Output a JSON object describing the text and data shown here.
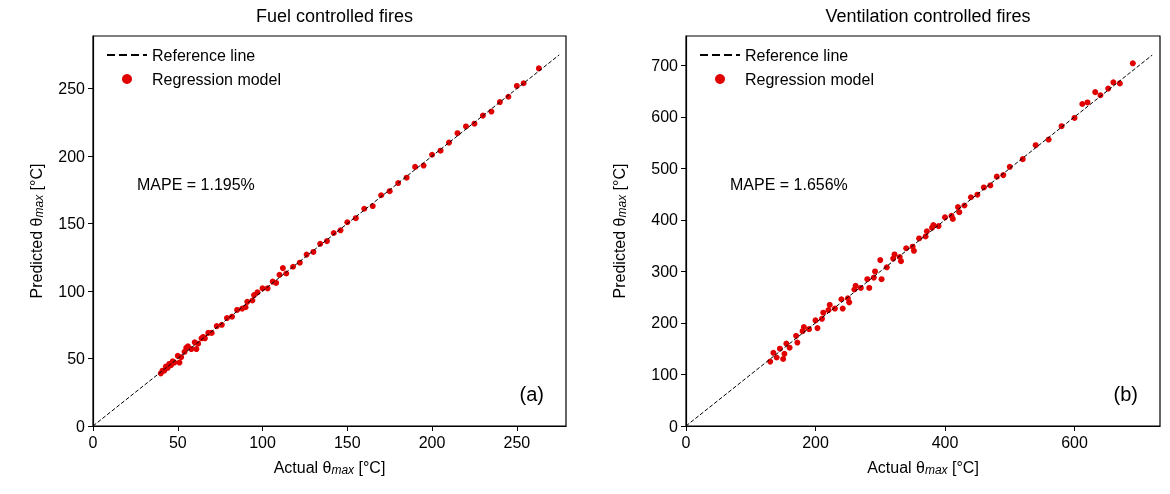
{
  "chart_data": [
    {
      "type": "scatter",
      "title": "Fuel controlled fires",
      "xlabel": "Actual θ$_{max}$ [°C]",
      "ylabel": "Predicted θ$_{max}$ [°C]",
      "xlim": [
        0,
        279
      ],
      "ylim": [
        0,
        289
      ],
      "xticks": [
        0,
        50,
        100,
        150,
        200,
        250
      ],
      "yticks": [
        0,
        50,
        100,
        150,
        200,
        250
      ],
      "grid": false,
      "legend": "top left",
      "annotations": [
        "MAPE = 1.195%",
        "(a)"
      ],
      "series": [
        {
          "name": "Reference line",
          "type": "line",
          "color": "#000000",
          "line_style": "dashed",
          "marker": "none",
          "x": [
            0,
            275
          ],
          "values": [
            0,
            275
          ]
        },
        {
          "name": "Regression model",
          "type": "scatter",
          "color": "#e00000",
          "marker": "circle",
          "x": [
            40,
            41,
            42,
            43,
            44,
            45,
            46,
            47,
            48,
            50,
            52,
            54,
            56,
            58,
            60,
            62,
            64,
            66,
            68,
            70,
            73,
            76,
            79,
            82,
            85,
            88,
            91,
            94,
            97,
            100,
            103,
            106,
            110,
            114,
            118,
            122,
            126,
            130,
            134,
            138,
            142,
            146,
            150,
            155,
            160,
            165,
            170,
            175,
            180,
            185,
            190,
            195,
            200,
            205,
            210,
            215,
            220,
            225,
            230,
            235,
            240,
            245,
            250,
            254,
            263,
            51,
            55,
            61,
            65,
            90,
            95,
            108,
            112
          ],
          "values": [
            39,
            41,
            41,
            44,
            43,
            46,
            45,
            48,
            47,
            52,
            51,
            55,
            59,
            57,
            62,
            61,
            65,
            65,
            69,
            69,
            74,
            75,
            80,
            81,
            86,
            87,
            92,
            93,
            99,
            102,
            102,
            107,
            112,
            113,
            118,
            121,
            127,
            129,
            135,
            137,
            143,
            145,
            151,
            154,
            161,
            163,
            171,
            174,
            180,
            184,
            192,
            193,
            201,
            204,
            210,
            217,
            222,
            224,
            230,
            233,
            240,
            244,
            252,
            254,
            265,
            47,
            58,
            57,
            66,
            88,
            97,
            106,
            117
          ]
        }
      ]
    },
    {
      "type": "scatter",
      "title": "Ventilation controlled fires",
      "xlabel": "Actual θ$_{max}$ [°C]",
      "ylabel": "Predicted θ$_{max}$ [°C]",
      "xlim": [
        0,
        732
      ],
      "ylim": [
        0,
        757
      ],
      "xticks": [
        0,
        200,
        400,
        600
      ],
      "yticks": [
        0,
        100,
        200,
        300,
        400,
        500,
        600,
        700
      ],
      "grid": false,
      "legend": "top left",
      "annotations": [
        "MAPE = 1.656%",
        "(b)"
      ],
      "series": [
        {
          "name": "Reference line",
          "type": "line",
          "color": "#000000",
          "line_style": "dashed",
          "marker": "none",
          "x": [
            0,
            720
          ],
          "values": [
            0,
            720
          ]
        },
        {
          "name": "Regression model",
          "type": "scatter",
          "color": "#e00000",
          "marker": "circle",
          "x": [
            130,
            135,
            140,
            145,
            150,
            155,
            160,
            170,
            180,
            190,
            200,
            210,
            220,
            230,
            240,
            250,
            260,
            270,
            280,
            290,
            300,
            310,
            320,
            330,
            340,
            350,
            360,
            370,
            380,
            390,
            400,
            410,
            420,
            430,
            440,
            450,
            460,
            470,
            480,
            490,
            500,
            520,
            540,
            560,
            580,
            600,
            620,
            640,
            660,
            670,
            690,
            152,
            182,
            203,
            222,
            242,
            262,
            283,
            302,
            322,
            352,
            382,
            422,
            172,
            212,
            252,
            292,
            332,
            372,
            412,
            612,
            632,
            652
          ],
          "values": [
            125,
            142,
            133,
            150,
            130,
            160,
            152,
            175,
            184,
            188,
            205,
            208,
            225,
            228,
            246,
            248,
            265,
            268,
            285,
            288,
            322,
            308,
            325,
            328,
            345,
            348,
            364,
            368,
            385,
            388,
            405,
            408,
            425,
            428,
            444,
            449,
            463,
            467,
            484,
            487,
            503,
            518,
            545,
            556,
            582,
            598,
            628,
            642,
            667,
            665,
            704,
            140,
            192,
            190,
            235,
            228,
            272,
            268,
            285,
            333,
            340,
            390,
            415,
            162,
            220,
            240,
            300,
            320,
            378,
            402,
            625,
            648,
            655
          ]
        }
      ]
    }
  ]
}
